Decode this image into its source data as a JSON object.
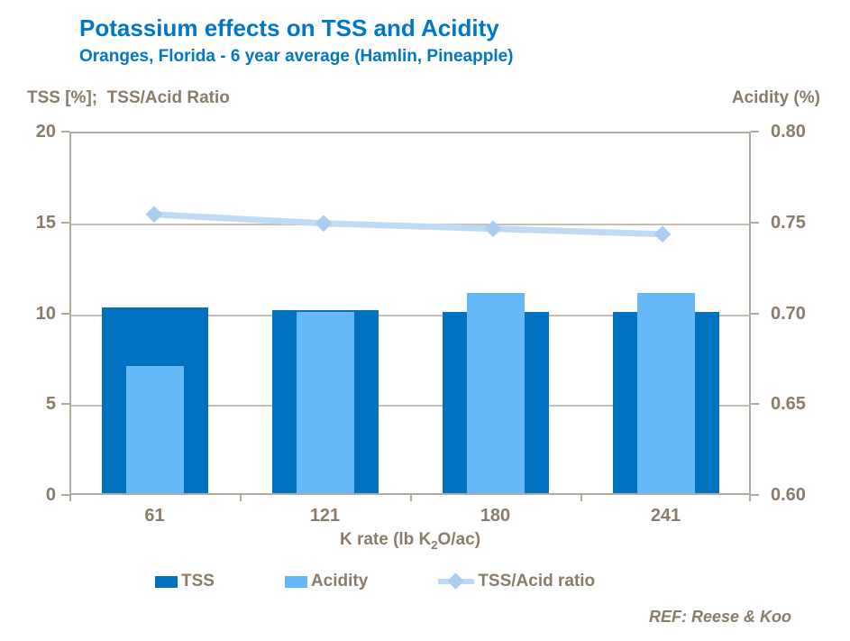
{
  "chart_data": {
    "type": "bar",
    "title": "Potassium effects on TSS and Acidity",
    "subtitle": "Oranges, Florida - 6 year average (Hamlin, Pineapple)",
    "categories": [
      "61",
      "121",
      "180",
      "241"
    ],
    "series": [
      {
        "name": "TSS",
        "type": "bar",
        "axis": "left",
        "color": "#0072C0",
        "values": [
          10.2,
          10.1,
          10.0,
          10.0
        ]
      },
      {
        "name": "Acidity",
        "type": "bar",
        "axis": "right",
        "color": "#66B9F8",
        "values": [
          0.67,
          0.7,
          0.71,
          0.71
        ]
      },
      {
        "name": "TSS/Acid ratio",
        "type": "line",
        "axis": "left",
        "color": "#BFDAF4",
        "marker_color": "#A9CEF2",
        "values": [
          15.5,
          15.0,
          14.7,
          14.4
        ]
      }
    ],
    "left_axis": {
      "title": "TSS [%];  TSS/Acid Ratio",
      "min": 0,
      "max": 20,
      "ticks": [
        "20",
        "15",
        "10",
        "5",
        "0"
      ],
      "gridline_values": [
        15,
        10,
        5
      ]
    },
    "right_axis": {
      "title": "Acidity (%)",
      "min": 0.6,
      "max": 0.8,
      "ticks": [
        "0.80",
        "0.75",
        "0.70",
        "0.65",
        "0.60"
      ]
    },
    "x_axis": {
      "title_prefix": "K rate (lb K",
      "title_sub": "2",
      "title_suffix": "O/ac)"
    },
    "legend_position": "bottom",
    "grid": true,
    "ref": "REF: Reese & Koo"
  }
}
